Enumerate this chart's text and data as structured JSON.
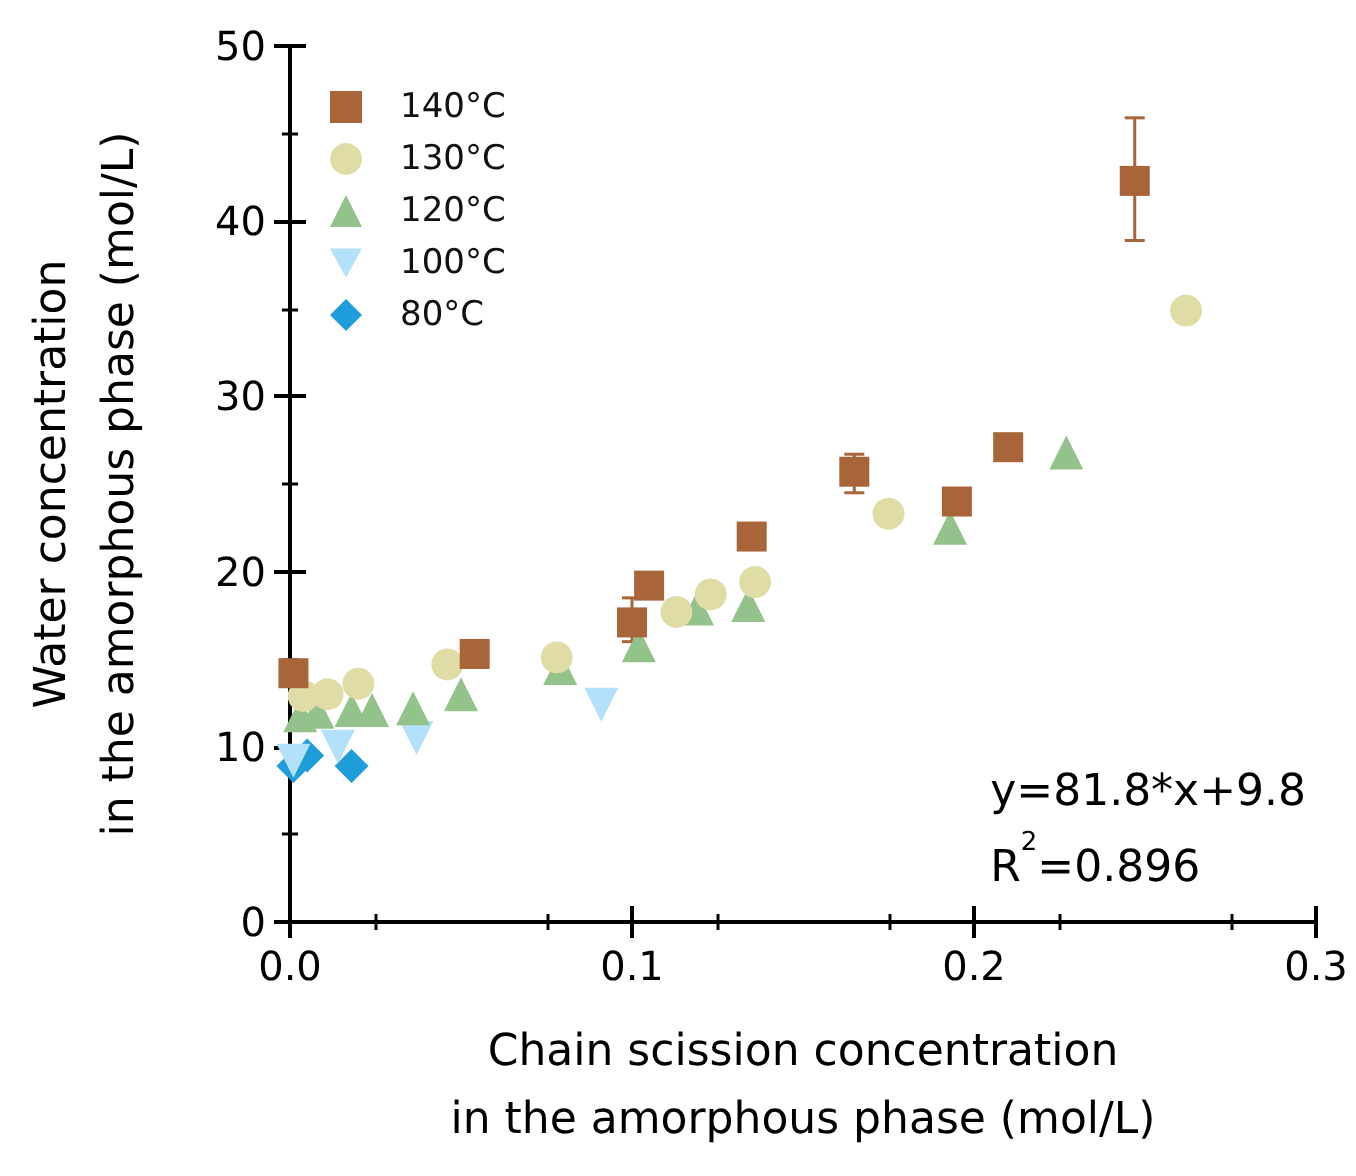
{
  "chart_data": {
    "type": "scatter",
    "xlabel": "Chain scission concentration\nin the amorphous phase (mol/L)",
    "ylabel": "Water concentration\nin the amorphous phase (mol/L)",
    "xlim": [
      0,
      0.3
    ],
    "xticks": [
      {
        "value": 0,
        "label": "0.0"
      },
      0.1,
      0.2,
      0.3
    ],
    "ylim": [
      0,
      50
    ],
    "yticks": [
      0,
      10,
      20,
      30,
      40,
      50
    ],
    "grid": false,
    "legend": "top left",
    "annotations": [
      "y=81.8*x+9.8",
      "R$^{2}$=0.896"
    ],
    "series": [
      {
        "name": "140°C",
        "color": "#a8653a",
        "marker": "square",
        "x": [
          0.001,
          0.054,
          0.1,
          0.105,
          0.135,
          0.165,
          0.195,
          0.21,
          0.247
        ],
        "values": [
          14.2,
          15.3,
          17.1,
          19.2,
          22.0,
          25.7,
          24.0,
          27.1,
          42.3
        ],
        "errors": [
          null,
          null,
          [
            16.0,
            18.5
          ],
          null,
          null,
          [
            24.5,
            26.7
          ],
          null,
          null,
          [
            38.9,
            45.9
          ]
        ]
      },
      {
        "name": "130°C",
        "color": "#e0dca6",
        "marker": "circle",
        "x": [
          0.004,
          0.011,
          0.02,
          0.046,
          0.078,
          0.113,
          0.123,
          0.136,
          0.175,
          0.262
        ],
        "values": [
          12.9,
          13.0,
          13.6,
          14.7,
          15.1,
          17.7,
          18.7,
          19.4,
          23.3,
          34.9
        ]
      },
      {
        "name": "120°C",
        "color": "#93c28a",
        "marker": "triangle",
        "x": [
          0.003,
          0.008,
          0.018,
          0.024,
          0.036,
          0.05,
          0.079,
          0.102,
          0.119,
          0.134,
          0.193,
          0.227
        ],
        "values": [
          11.8,
          12.0,
          12.1,
          12.1,
          12.2,
          13.0,
          14.5,
          15.8,
          17.9,
          18.1,
          22.5,
          26.8
        ]
      },
      {
        "name": "100°C",
        "color": "#b3e0fb",
        "marker": "triangle-down",
        "x": [
          0.001,
          0.014,
          0.037,
          0.091
        ],
        "values": [
          9.2,
          10.0,
          10.5,
          12.4
        ]
      },
      {
        "name": "80°C",
        "color": "#1f9ddb",
        "marker": "diamond",
        "x": [
          0.001,
          0.005,
          0.018
        ],
        "values": [
          8.9,
          9.5,
          8.9
        ]
      }
    ]
  }
}
